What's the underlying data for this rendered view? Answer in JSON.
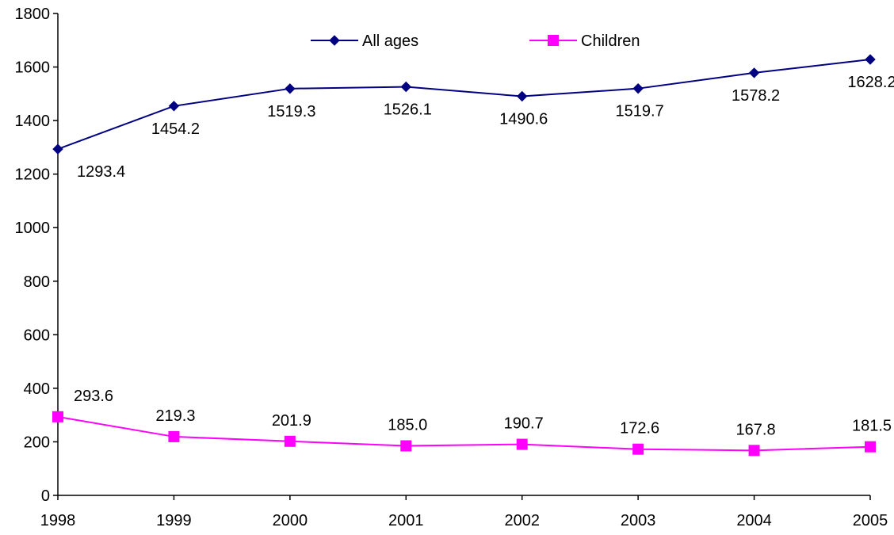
{
  "chart_data": {
    "type": "line",
    "title": "",
    "xlabel": "",
    "ylabel": "",
    "categories": [
      "1998",
      "1999",
      "2000",
      "2001",
      "2002",
      "2003",
      "2004",
      "2005"
    ],
    "ylim": [
      0,
      1800
    ],
    "yticks": [
      0,
      200,
      400,
      600,
      800,
      1000,
      1200,
      1400,
      1600,
      1800
    ],
    "grid": false,
    "legend_position": "top-center",
    "series": [
      {
        "name": "All ages",
        "color": "#000080",
        "marker": "diamond",
        "values": [
          1293.4,
          1454.2,
          1519.3,
          1526.1,
          1490.6,
          1519.7,
          1578.2,
          1628.2
        ],
        "labels": [
          "1293.4",
          "1454.2",
          "1519.3",
          "1526.1",
          "1490.6",
          "1519.7",
          "1578.2",
          "1628.2"
        ],
        "label_position": "below"
      },
      {
        "name": "Children",
        "color": "#FF00FF",
        "marker": "square",
        "values": [
          293.6,
          219.3,
          201.9,
          185.0,
          190.7,
          172.6,
          167.8,
          181.5
        ],
        "labels": [
          "293.6",
          "219.3",
          "201.9",
          "185.0",
          "190.7",
          "172.6",
          "167.8",
          "181.5"
        ],
        "label_position": "above"
      }
    ]
  }
}
